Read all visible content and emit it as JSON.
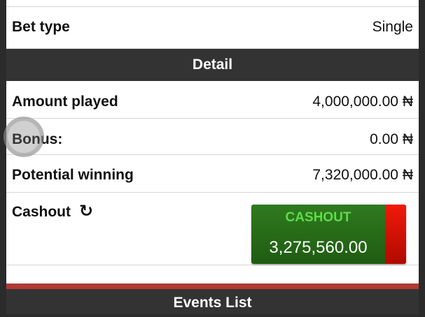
{
  "bet_type": {
    "label": "Bet type",
    "value": "Single"
  },
  "detail_header": "Detail",
  "amount_played": {
    "label": "Amount played",
    "value": "4,000,000.00 ₦"
  },
  "bonus": {
    "label": "Bonus:",
    "value": "0.00 ₦"
  },
  "potential_winning": {
    "label": "Potential winning",
    "value": "7,320,000.00 ₦"
  },
  "cashout": {
    "label": "Cashout",
    "refresh_icon": "↻",
    "button_caption": "CASHOUT",
    "button_amount": "3,275,560.00"
  },
  "events_header": "Events List",
  "colors": {
    "header_bg": "#333333",
    "cashout_green": "#2f7a1f",
    "cashout_red": "#e01a0a",
    "divider_red": "#b03a33"
  }
}
